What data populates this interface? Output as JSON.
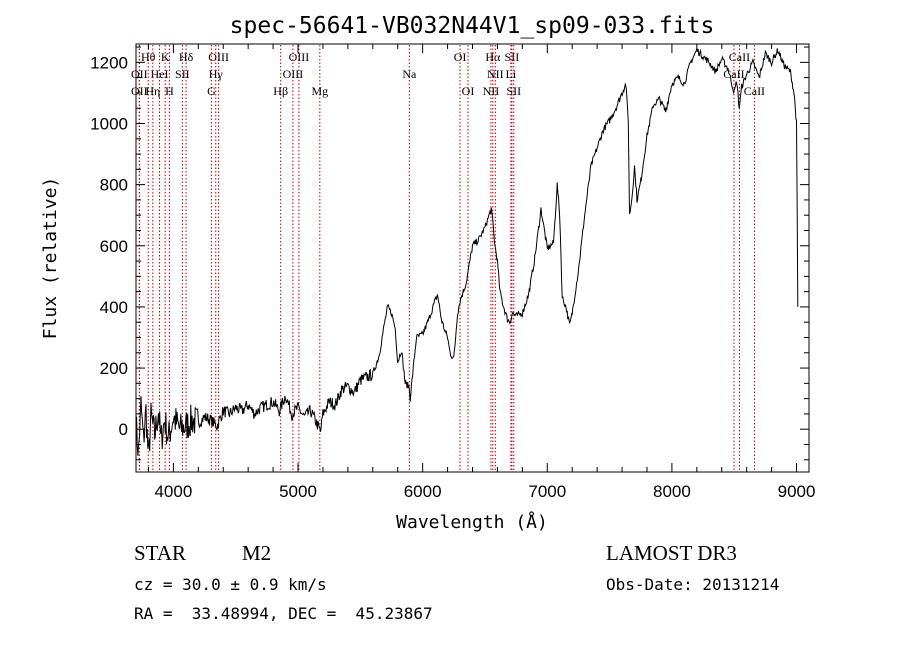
{
  "chart_data": {
    "type": "line",
    "title": "spec-56641-VB032N44V1_sp09-033.fits",
    "xlabel": "Wavelength (Å)",
    "ylabel": "Flux (relative)",
    "xlim": [
      3700,
      9100
    ],
    "ylim": [
      -140,
      1260
    ],
    "xticks": [
      4000,
      5000,
      6000,
      7000,
      8000,
      9000
    ],
    "yticks": [
      0,
      200,
      400,
      600,
      800,
      1000,
      1200
    ],
    "grid": false,
    "spectrum": {
      "x": [
        3700,
        3720,
        3740,
        3760,
        3780,
        3800,
        3820,
        3850,
        3880,
        3900,
        3930,
        3960,
        4000,
        4050,
        4100,
        4150,
        4200,
        4250,
        4300,
        4350,
        4400,
        4450,
        4500,
        4550,
        4600,
        4650,
        4700,
        4750,
        4800,
        4850,
        4900,
        4950,
        5000,
        5050,
        5100,
        5150,
        5180,
        5200,
        5250,
        5300,
        5350,
        5400,
        5450,
        5500,
        5550,
        5600,
        5650,
        5700,
        5720,
        5750,
        5780,
        5800,
        5830,
        5860,
        5890,
        5900,
        5920,
        5950,
        6000,
        6050,
        6100,
        6120,
        6150,
        6180,
        6200,
        6220,
        6250,
        6280,
        6300,
        6350,
        6400,
        6450,
        6500,
        6550,
        6562,
        6580,
        6600,
        6620,
        6650,
        6680,
        6700,
        6720,
        6750,
        6800,
        6850,
        6900,
        6950,
        7000,
        7050,
        7080,
        7100,
        7120,
        7150,
        7180,
        7200,
        7250,
        7300,
        7350,
        7400,
        7450,
        7500,
        7550,
        7600,
        7630,
        7650,
        7660,
        7680,
        7700,
        7720,
        7750,
        7800,
        7850,
        7900,
        7950,
        8000,
        8050,
        8100,
        8150,
        8200,
        8250,
        8300,
        8350,
        8400,
        8450,
        8500,
        8520,
        8540,
        8560,
        8600,
        8650,
        8700,
        8750,
        8800,
        8850,
        8900,
        8950,
        8980,
        9000,
        9010
      ],
      "y": [
        20,
        -80,
        80,
        -40,
        60,
        -100,
        40,
        -20,
        60,
        -40,
        30,
        -30,
        40,
        0,
        10,
        30,
        20,
        40,
        30,
        10,
        60,
        50,
        70,
        60,
        80,
        50,
        70,
        80,
        90,
        60,
        110,
        50,
        70,
        40,
        60,
        20,
        -10,
        50,
        90,
        80,
        130,
        140,
        120,
        160,
        170,
        180,
        240,
        360,
        400,
        380,
        330,
        220,
        260,
        150,
        140,
        100,
        180,
        300,
        310,
        360,
        420,
        440,
        360,
        320,
        300,
        250,
        230,
        380,
        420,
        480,
        600,
        620,
        660,
        720,
        680,
        600,
        550,
        450,
        400,
        360,
        350,
        380,
        370,
        380,
        440,
        560,
        720,
        590,
        610,
        800,
        700,
        430,
        400,
        340,
        380,
        520,
        700,
        860,
        920,
        980,
        1010,
        1050,
        1100,
        1130,
        1010,
        700,
        760,
        860,
        750,
        810,
        960,
        1060,
        1080,
        1040,
        1130,
        1150,
        1130,
        1200,
        1240,
        1220,
        1200,
        1170,
        1210,
        1180,
        1100,
        1140,
        1050,
        1120,
        1160,
        1200,
        1150,
        1230,
        1200,
        1240,
        1190,
        1170,
        1100,
        1000,
        400
      ]
    },
    "line_markers": [
      {
        "label": "Hθ",
        "x": 3798,
        "row": 0
      },
      {
        "label": "K",
        "x": 3934,
        "row": 0
      },
      {
        "label": "Hδ",
        "x": 4102,
        "row": 0
      },
      {
        "label": "OIII",
        "x": 4363,
        "row": 0
      },
      {
        "label": "OIII",
        "x": 5007,
        "row": 0
      },
      {
        "label": "OI",
        "x": 6300,
        "row": 0
      },
      {
        "label": "Hα",
        "x": 6563,
        "row": 0
      },
      {
        "label": "SII",
        "x": 6716,
        "row": 0
      },
      {
        "label": "CaII",
        "x": 8542,
        "row": 0
      },
      {
        "label": "OII",
        "x": 3727,
        "row": 1
      },
      {
        "label": "HeI",
        "x": 3889,
        "row": 1
      },
      {
        "label": "SII",
        "x": 4072,
        "row": 1
      },
      {
        "label": "Hγ",
        "x": 4340,
        "row": 1
      },
      {
        "label": "OIII",
        "x": 4959,
        "row": 1
      },
      {
        "label": "Na",
        "x": 5893,
        "row": 1
      },
      {
        "label": "NII",
        "x": 6583,
        "row": 1
      },
      {
        "label": "Li",
        "x": 6708,
        "row": 1
      },
      {
        "label": "CaII",
        "x": 8498,
        "row": 1
      },
      {
        "label": "OII",
        "x": 3727,
        "row": 2
      },
      {
        "label": "Hη",
        "x": 3835,
        "row": 2
      },
      {
        "label": "H",
        "x": 3968,
        "row": 2
      },
      {
        "label": "G",
        "x": 4305,
        "row": 2
      },
      {
        "label": "Hβ",
        "x": 4861,
        "row": 2
      },
      {
        "label": "Mg",
        "x": 5175,
        "row": 2
      },
      {
        "label": "OI",
        "x": 6364,
        "row": 2
      },
      {
        "label": "NII",
        "x": 6548,
        "row": 2
      },
      {
        "label": "SII",
        "x": 6731,
        "row": 2
      },
      {
        "label": "CaII",
        "x": 8662,
        "row": 2
      }
    ]
  },
  "info": {
    "object_type": "STAR",
    "subclass": "M2",
    "survey": "LAMOST DR3",
    "redshift": "cz = 30.0 ± 0.9 km/s",
    "obs_date": "Obs-Date: 20131214",
    "coords": "RA =  33.48994, DEC =  45.23867"
  }
}
